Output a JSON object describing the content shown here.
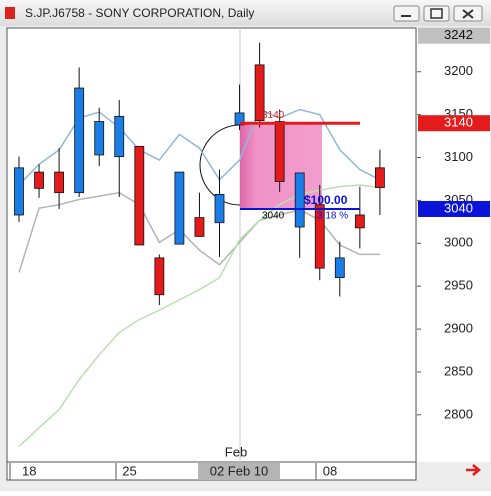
{
  "window_title": "S.JP.J6758 - SONY CORPORATION, Daily",
  "chart_data": {
    "type": "candlestick",
    "categories": [
      "18",
      null,
      null,
      null,
      null,
      "25",
      null,
      null,
      null,
      null,
      null,
      null,
      null,
      null,
      null,
      "08",
      null,
      null,
      null
    ],
    "crosshair_label": "02 Feb 10",
    "month_label": "Feb",
    "series": [
      {
        "up_color": "#1a7ee6",
        "down_color": "#e31b1b",
        "open": [
          3033,
          3083,
          3083,
          3059,
          3103,
          3101,
          3113,
          2983,
          2999,
          3030,
          3024,
          3138,
          3208,
          3142,
          3019,
          3045,
          2960,
          3033,
          3088
        ],
        "high": [
          3101,
          3092,
          3111,
          3205,
          3158,
          3167,
          3113,
          2987,
          3083,
          3059,
          3086,
          3185,
          3234,
          3156,
          3082,
          3068,
          3002,
          3066,
          3109
        ],
        "low": [
          3025,
          3053,
          3040,
          3054,
          3090,
          3054,
          2998,
          2928,
          2999,
          3008,
          2984,
          3132,
          3135,
          3060,
          2983,
          2957,
          2938,
          2994,
          3033
        ],
        "close": [
          3088,
          3064,
          3059,
          3181,
          3142,
          3148,
          2998,
          2940,
          3083,
          3008,
          3057,
          3152,
          3143,
          3072,
          3082,
          2971,
          2983,
          3018,
          3065
        ]
      }
    ],
    "lines": [
      {
        "color": "#8fb8dc",
        "values": [
          3068,
          3092,
          3109,
          3146,
          3153,
          3135,
          3109,
          3097,
          3127,
          3111,
          3074,
          3097,
          3156,
          3146,
          3156,
          3150,
          3109,
          3086,
          3074
        ]
      },
      {
        "color": "#b4b4b4",
        "values": [
          2966,
          3041,
          3045,
          3051,
          3055,
          3059,
          3045,
          3001,
          3016,
          2992,
          2975,
          3001,
          3027,
          3033,
          3039,
          3027,
          2998,
          2987,
          2987
        ]
      },
      {
        "color": "#b8e0b0",
        "values": [
          2763,
          2785,
          2806,
          2841,
          2870,
          2896,
          2911,
          2922,
          2934,
          2946,
          2960,
          3004,
          3027,
          3045,
          3057,
          3062,
          3066,
          3068,
          3065
        ]
      }
    ],
    "levels": [
      {
        "value": 3140,
        "color": "#e31b1b"
      },
      {
        "value": 3040,
        "color": "#0a14d8"
      }
    ],
    "range_label": "$100.00",
    "range_pct_label": "3.18 %",
    "top_label": 3242,
    "ylim": [
      2745,
      3251
    ],
    "yticks": [
      2800,
      2850,
      2900,
      2950,
      3000,
      3050,
      3100,
      3150,
      3200
    ],
    "grid": false
  }
}
